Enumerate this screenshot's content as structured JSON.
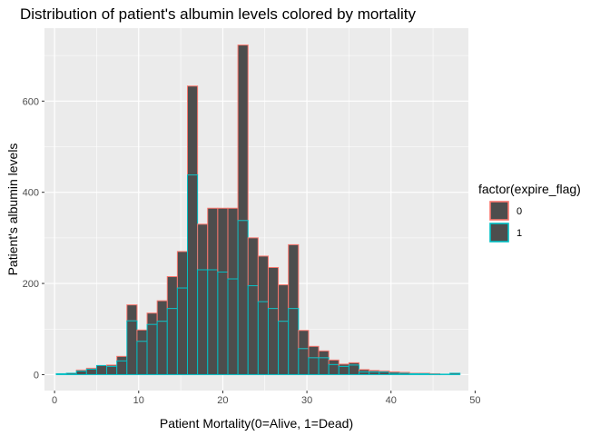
{
  "chart_data": {
    "type": "bar",
    "subtype": "stacked-histogram",
    "title": "Distribution of patient's albumin levels colored by mortality",
    "xlabel": "Patient Mortality(0=Alive, 1=Dead)",
    "ylabel": "Patient's albumin levels",
    "xlim": [
      -1.2,
      49.2
    ],
    "ylim": [
      -35,
      760
    ],
    "x_ticks": [
      0,
      10,
      20,
      30,
      40,
      50
    ],
    "y_ticks": [
      0,
      200,
      400,
      600
    ],
    "grid": true,
    "fill_color": "#4d4d4d",
    "bin_width": 1.2,
    "bin_centers": [
      0.8,
      2.0,
      3.2,
      4.4,
      5.6,
      6.8,
      8.0,
      9.2,
      10.4,
      11.6,
      12.8,
      14.0,
      15.2,
      16.4,
      17.6,
      18.8,
      20.0,
      21.2,
      22.4,
      23.6,
      24.8,
      26.0,
      27.2,
      28.4,
      29.6,
      30.8,
      32.0,
      33.2,
      34.4,
      35.6,
      36.8,
      38.0,
      39.2,
      40.4,
      41.6,
      42.8,
      44.0,
      45.2,
      46.4,
      47.6
    ],
    "series": [
      {
        "name": "0",
        "color": "#f8766d",
        "values": [
          0,
          0,
          2,
          2,
          0,
          3,
          10,
          35,
          25,
          25,
          45,
          70,
          80,
          195,
          100,
          135,
          140,
          155,
          385,
          105,
          100,
          90,
          80,
          140,
          40,
          25,
          15,
          10,
          5,
          5,
          5,
          3,
          2,
          3,
          2,
          1,
          1,
          1,
          0,
          0
        ]
      },
      {
        "name": "1",
        "color": "#00bfc4",
        "values": [
          2,
          3,
          8,
          12,
          20,
          18,
          30,
          118,
          73,
          110,
          117,
          145,
          190,
          438,
          230,
          230,
          225,
          210,
          338,
          195,
          160,
          145,
          117,
          145,
          57,
          37,
          37,
          22,
          18,
          21,
          6,
          6,
          6,
          3,
          3,
          2,
          2,
          1,
          1,
          3
        ]
      }
    ],
    "legend": {
      "title": "factor(expire_flag)",
      "position": "right"
    }
  }
}
